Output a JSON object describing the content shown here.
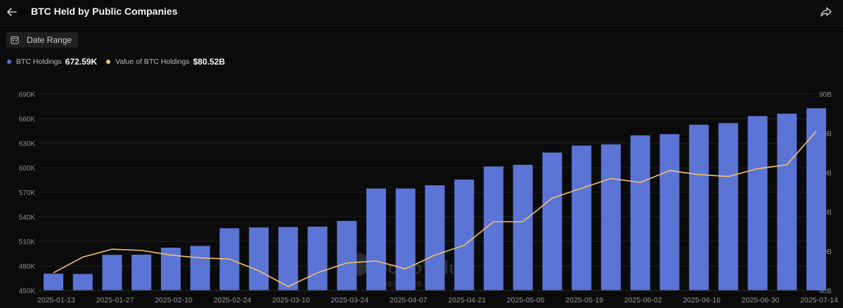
{
  "header": {
    "title": "BTC Held by Public Companies",
    "back_icon": "arrow-left-icon",
    "share_icon": "share-icon"
  },
  "toolbar": {
    "date_range_label": "Date Range",
    "calendar_icon": "calendar-icon"
  },
  "legend": {
    "items": [
      {
        "label": "BTC Holdings",
        "value": "672.59K",
        "color": "#5b74d6"
      },
      {
        "label": "Value of BTC Holdings",
        "value": "$80.52B",
        "color": "#f0c36a"
      }
    ]
  },
  "watermark": {
    "text": "SoSoValue",
    "subtext": "sosovalue.com"
  },
  "chart_data": {
    "type": "bar",
    "x_tick_labels": [
      "2025-01-13",
      "2025-01-27",
      "2025-02-10",
      "2025-02-24",
      "2025-03-10",
      "2025-03-24",
      "2025-04-07",
      "2025-04-21",
      "2025-05-05",
      "2025-05-19",
      "2025-06-02",
      "2025-06-16",
      "2025-06-30",
      "2025-07-14"
    ],
    "y_left": {
      "ticks": [
        "450K",
        "480K",
        "510K",
        "540K",
        "570K",
        "600K",
        "630K",
        "660K",
        "690K"
      ],
      "ylim": [
        450,
        690
      ],
      "unit": "K"
    },
    "y_right": {
      "ticks": [
        "40B",
        "50B",
        "60B",
        "70B",
        "80B",
        "90B"
      ],
      "ylim": [
        40,
        90
      ],
      "unit": "B"
    },
    "grid": true,
    "series": [
      {
        "name": "BTC Holdings",
        "kind": "bar",
        "axis": "left",
        "color": "#5b74d6",
        "values": [
          470.5,
          470.2,
          493.5,
          493.8,
          502.3,
          504.5,
          526.0,
          527.0,
          527.5,
          528.0,
          535.0,
          574.5,
          574.6,
          578.5,
          585.5,
          601.5,
          603.5,
          618.5,
          627.0,
          628.5,
          639.5,
          641.0,
          652.5,
          654.5,
          663.0,
          666.0,
          672.59
        ]
      },
      {
        "name": "Value of BTC Holdings",
        "kind": "line",
        "axis": "right",
        "color": "#f0c36a",
        "values": [
          44.5,
          48.5,
          50.5,
          50.2,
          49.0,
          48.3,
          48.0,
          45.0,
          41.0,
          44.5,
          47.0,
          47.5,
          45.5,
          49.0,
          51.5,
          57.5,
          57.5,
          63.5,
          66.0,
          68.5,
          67.5,
          70.5,
          69.5,
          69.0,
          71.0,
          72.0,
          80.52
        ]
      }
    ]
  }
}
